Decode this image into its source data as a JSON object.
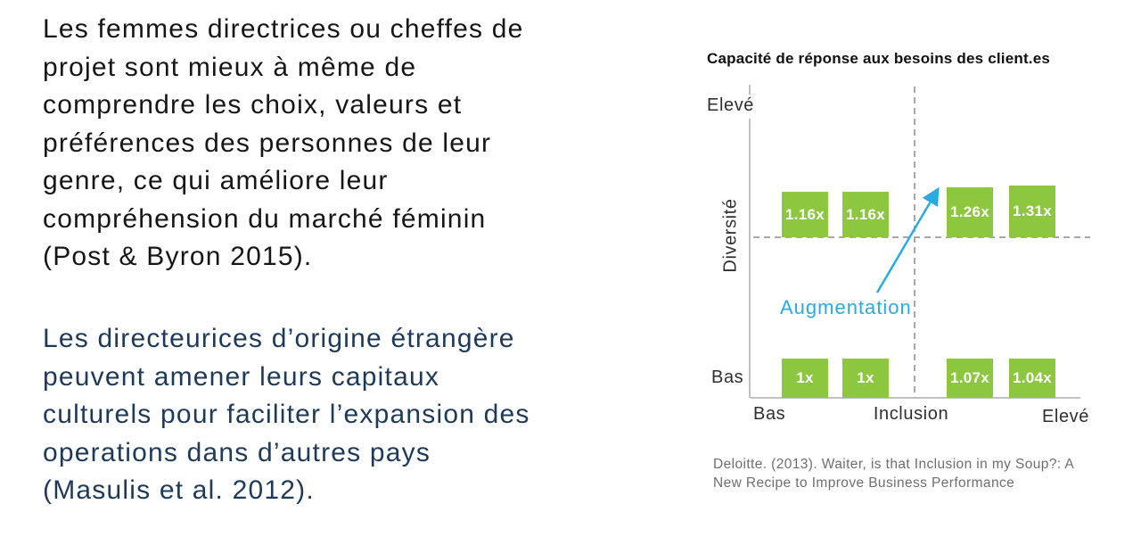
{
  "slide": {
    "paragraph1": "Les femmes directrices ou cheffes de\nprojet sont mieux à même de\ncomprendre les choix, valeurs et\npréférences des personnes de leur\ngenre, ce qui améliore leur\ncompréhension du marché féminin\n(Post & Byron 2015).",
    "paragraph2": "Les directeurices d’origine étrangère\npeuvent amener leurs capitaux\nculturels pour faciliter l’expansion des\noperations dans d’autres pays\n(Masulis et al. 2012)."
  },
  "chart_data": {
    "type": "bar",
    "title": "Capacité de réponse aux besoins des client.es",
    "x_axis": {
      "title": "Inclusion",
      "left_label": "Bas",
      "right_label": "Elevé"
    },
    "y_axis": {
      "title": "Diversité",
      "top_label": "Elevé",
      "bottom_label": "Bas"
    },
    "annotation": "Augmentation",
    "series": [
      {
        "name": "diversite-elevee",
        "labels": [
          "1.16x",
          "1.16x",
          "1.26x",
          "1.31x"
        ],
        "values": [
          1.16,
          1.16,
          1.26,
          1.31
        ]
      },
      {
        "name": "diversite-basse",
        "labels": [
          "1x",
          "1x",
          "1.07x",
          "1.04x"
        ],
        "values": [
          1.0,
          1.0,
          1.07,
          1.04
        ]
      }
    ],
    "legend_position": "none",
    "grid": "quadrant-dashed",
    "source": "Deloitte. (2013). Waiter, is that Inclusion in my Soup?: A\nNew Recipe to Improve Business Performance",
    "colors": {
      "bar": "#8DC63F",
      "bar_label": "#FFFFFF",
      "annotation": "#29ABE2",
      "dashed_line": "#A8A8A8",
      "axis_line": "#C1C1C1",
      "paragraph1_text": "#161616",
      "paragraph2_text": "#1E3A5A",
      "source_text": "#6E6E6E"
    }
  }
}
